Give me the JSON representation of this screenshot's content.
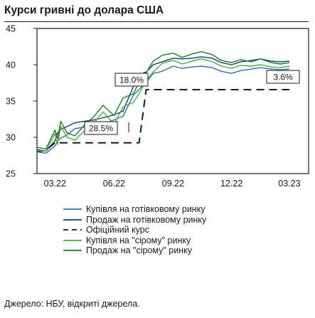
{
  "title": "Курси гривні до долара США",
  "source": "Джерело: НБУ, відкриті джерела.",
  "chart_data": {
    "type": "line",
    "x": [
      "2022-02-01",
      "2022-02-15",
      "2022-03-01",
      "2022-03-05",
      "2022-03-10",
      "2022-03-20",
      "2022-04-01",
      "2022-04-15",
      "2022-05-01",
      "2022-05-15",
      "2022-06-01",
      "2022-06-15",
      "2022-07-01",
      "2022-07-10",
      "2022-07-21",
      "2022-08-01",
      "2022-08-15",
      "2022-09-01",
      "2022-09-15",
      "2022-10-01",
      "2022-10-15",
      "2022-11-01",
      "2022-11-15",
      "2022-12-01",
      "2022-12-15",
      "2023-01-01",
      "2023-01-15",
      "2023-02-01",
      "2023-02-15",
      "2023-03-01"
    ],
    "xticks": [
      "03.22",
      "06.22",
      "09.22",
      "12.22",
      "03.23"
    ],
    "xtick_dates": [
      "2022-03-01",
      "2022-06-01",
      "2022-09-01",
      "2022-12-01",
      "2023-03-01"
    ],
    "yticks": [
      25,
      30,
      35,
      40,
      45
    ],
    "ylim": [
      25,
      45
    ],
    "xlim": [
      "2022-02-01",
      "2023-03-31"
    ],
    "grid": false,
    "series": [
      {
        "name": "Купівля на готівковому ринку",
        "style": "solid",
        "color": "#2f6fb5",
        "values": [
          28.0,
          27.8,
          28.8,
          29.5,
          29.9,
          30.3,
          31.2,
          31.4,
          31.6,
          31.8,
          32.4,
          32.9,
          35.8,
          36.6,
          37.6,
          38.8,
          39.1,
          39.8,
          39.5,
          39.7,
          39.8,
          39.6,
          39.1,
          38.8,
          39.2,
          39.4,
          39.6,
          39.4,
          39.3,
          39.4
        ]
      },
      {
        "name": "Продаж на готівковому ринку",
        "style": "solid",
        "color": "#0f3d7a",
        "values": [
          28.3,
          28.1,
          29.5,
          30.6,
          31.1,
          31.5,
          32.0,
          32.2,
          32.4,
          32.7,
          33.1,
          33.6,
          37.0,
          38.6,
          39.0,
          40.0,
          40.4,
          40.9,
          40.8,
          40.9,
          41.1,
          40.9,
          40.3,
          40.0,
          40.4,
          40.6,
          40.8,
          40.5,
          40.4,
          40.5
        ]
      },
      {
        "name": "Офіційний курс",
        "style": "dashed",
        "color": "#1a1a1a",
        "values": [
          28.0,
          28.2,
          29.25,
          29.25,
          29.25,
          29.25,
          29.25,
          29.25,
          29.25,
          29.25,
          29.25,
          29.25,
          29.25,
          29.25,
          36.57,
          36.57,
          36.57,
          36.57,
          36.57,
          36.57,
          36.57,
          36.57,
          36.57,
          36.57,
          36.57,
          36.57,
          36.57,
          36.57,
          36.57,
          36.57
        ]
      },
      {
        "name": "Купівля на \"сірому\" ринку",
        "style": "solid",
        "color": "#4cae3c",
        "values": [
          28.2,
          28.1,
          30.5,
          29.0,
          31.5,
          30.0,
          29.6,
          30.8,
          32.0,
          33.5,
          31.8,
          34.2,
          34.8,
          36.0,
          37.8,
          39.0,
          40.2,
          40.6,
          40.1,
          40.5,
          40.8,
          40.4,
          39.8,
          39.5,
          39.9,
          39.8,
          40.0,
          39.7,
          39.6,
          39.8
        ]
      },
      {
        "name": "Продаж на \"сірому\" ринку",
        "style": "solid",
        "color": "#1f7a2a",
        "values": [
          28.6,
          28.4,
          31.0,
          29.8,
          32.2,
          30.6,
          30.2,
          31.6,
          32.9,
          34.4,
          33.0,
          35.4,
          36.0,
          37.6,
          38.9,
          40.5,
          41.3,
          41.6,
          41.0,
          41.5,
          41.8,
          41.4,
          40.6,
          40.3,
          40.7,
          40.4,
          40.8,
          40.3,
          40.1,
          40.3
        ]
      }
    ],
    "annotations": [
      "18.0%",
      "3.6%",
      "28.5%"
    ]
  }
}
